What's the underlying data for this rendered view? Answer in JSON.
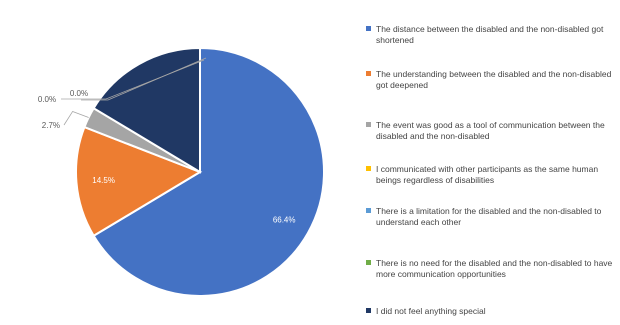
{
  "chart_data": {
    "type": "pie",
    "title": "",
    "slices": [
      {
        "label": "The distance between the disabled and the non-disabled got shortened",
        "value": 66.4,
        "display": "66.4%",
        "color": "#4472C4"
      },
      {
        "label": "The understanding between the disabled and the non-disabled got deepened",
        "value": 14.5,
        "display": "14.5%",
        "color": "#ED7D31"
      },
      {
        "label": "The event was good as a tool of communication between the disabled and the non-disabled",
        "value": 2.7,
        "display": "2.7%",
        "color": "#A5A5A5"
      },
      {
        "label": "I communicated with other participants as the same human beings regardless of disabilities",
        "value": 0.0,
        "display": "0.0%",
        "color": "#FFC000"
      },
      {
        "label": "There is a limitation for the disabled and the non-disabled to understand each other",
        "value": 0.0,
        "display": "0.0%",
        "color": "#5B9BD5"
      },
      {
        "label": "There is no need for the disabled and the non-disabled to have more communication opportunities",
        "value": 0.0,
        "display": "",
        "color": "#70AD47"
      },
      {
        "label": "I did not feel anything special",
        "value": 16.4,
        "display": "",
        "color": "#203864"
      }
    ],
    "legend_position": "right"
  }
}
